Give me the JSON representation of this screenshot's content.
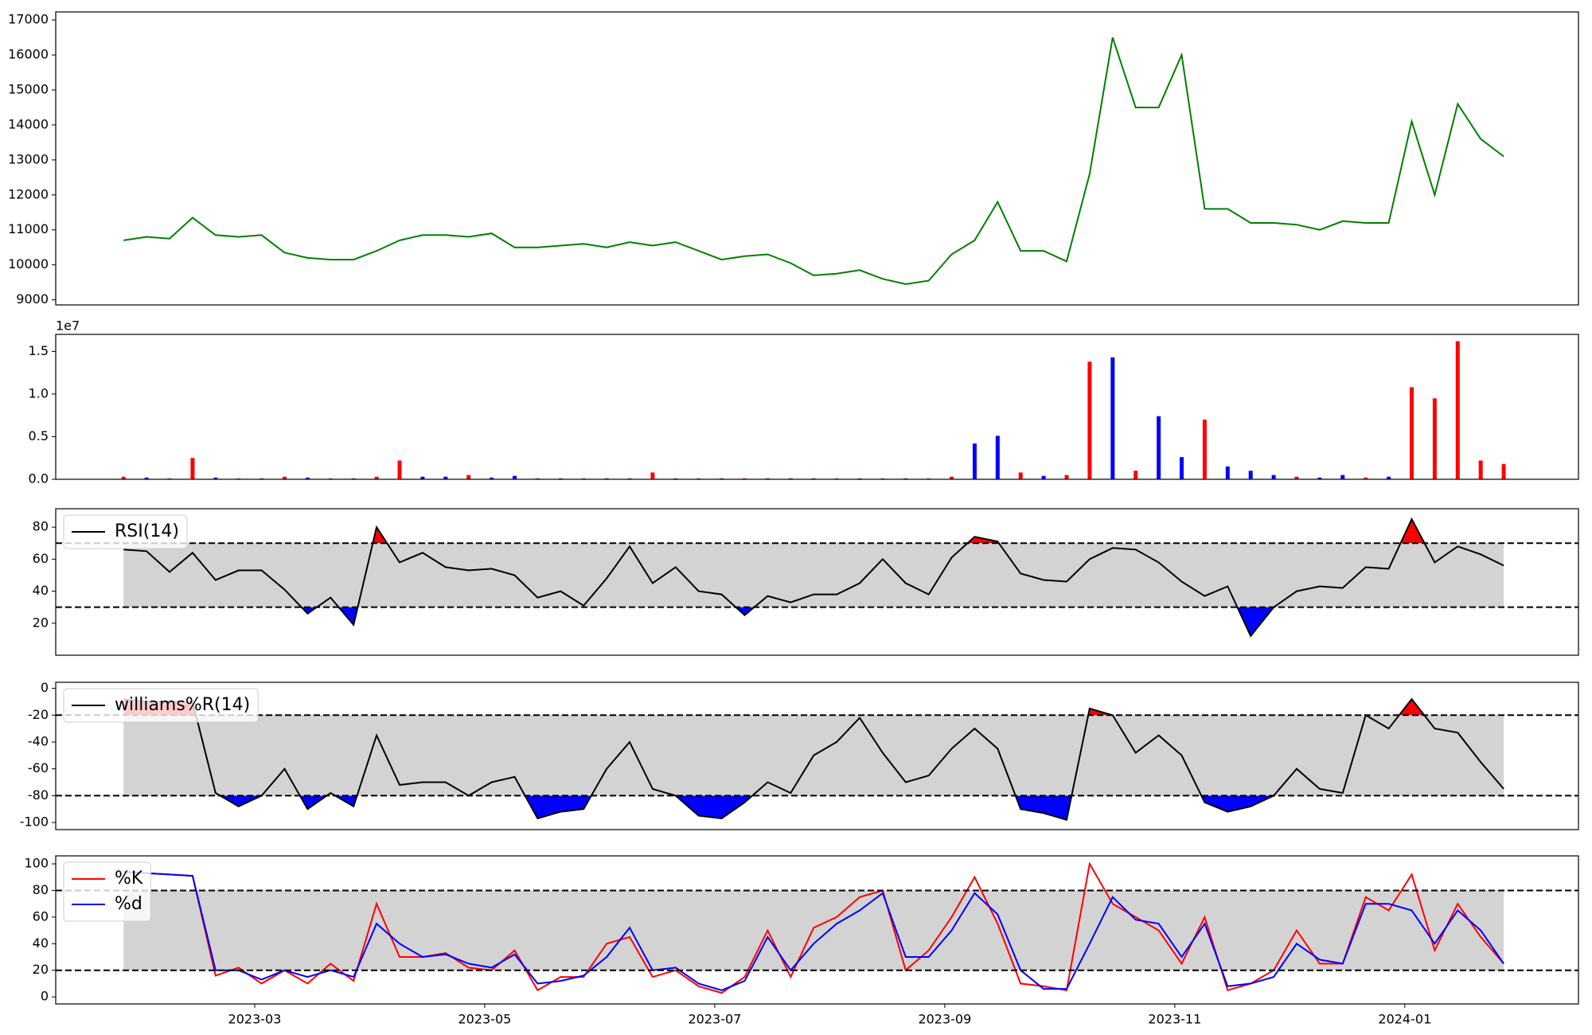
{
  "chart_data": [
    {
      "type": "line",
      "x": [
        1.86,
        2.06,
        2.26,
        2.46,
        2.66,
        2.86,
        3.06,
        3.26,
        3.46,
        3.66,
        3.86,
        4.06,
        4.26,
        4.46,
        4.66,
        4.86,
        5.06,
        5.26,
        5.46,
        5.66,
        5.86,
        6.06,
        6.26,
        6.46,
        6.66,
        6.86,
        7.06,
        7.26,
        7.46,
        7.66,
        7.86,
        8.06,
        8.26,
        8.46,
        8.66,
        8.86,
        9.06,
        9.26,
        9.46,
        9.66,
        9.86,
        10.06,
        10.26,
        10.46,
        10.66,
        10.86,
        11.06,
        11.26,
        11.46,
        11.66,
        11.86,
        12.06,
        12.26,
        12.46,
        12.66,
        12.86,
        13.06,
        13.26,
        13.46,
        13.66,
        13.86
      ],
      "series": [
        {
          "color": "green",
          "values": [
            10700,
            10800,
            10750,
            11350,
            10850,
            10800,
            10850,
            10350,
            10200,
            10150,
            10150,
            10400,
            10700,
            10850,
            10850,
            10800,
            10900,
            10500,
            10500,
            10550,
            10600,
            10500,
            10650,
            10550,
            10650,
            10400,
            10150,
            10250,
            10300,
            10050,
            9700,
            9750,
            9850,
            9600,
            9450,
            9550,
            10300,
            10700,
            11800,
            10400,
            10400,
            10100,
            12600,
            16500,
            14500,
            14500,
            16000,
            11600,
            11600,
            11200,
            11200,
            11150,
            11000,
            11250,
            11200,
            11200,
            14100,
            12000,
            14600,
            13600,
            13100
          ]
        }
      ],
      "ylim": [
        8855,
        17230
      ],
      "yticks": [
        9000,
        10000,
        11000,
        12000,
        13000,
        14000,
        15000,
        16000,
        17000
      ]
    },
    {
      "type": "bar",
      "offset_label": "1e7",
      "values": [
        300000,
        200000,
        100000,
        2500000,
        200000,
        100000,
        100000,
        300000,
        200000,
        100000,
        100000,
        300000,
        2200000,
        300000,
        300000,
        500000,
        200000,
        400000,
        100000,
        100000,
        100000,
        100000,
        100000,
        800000,
        100000,
        100000,
        100000,
        100000,
        100000,
        100000,
        100000,
        100000,
        100000,
        100000,
        100000,
        100000,
        300000,
        4200000,
        5100000,
        800000,
        400000,
        500000,
        13800000,
        14300000,
        1000000,
        7400000,
        2600000,
        7000000,
        1500000,
        1000000,
        500000,
        300000,
        200000,
        500000,
        200000,
        300000,
        10800000,
        9500000,
        16200000,
        2200000,
        1800000
      ],
      "colors": [
        "red",
        "blue",
        "red",
        "red",
        "blue",
        "red",
        "blue",
        "red",
        "blue",
        "red",
        "blue",
        "red",
        "red",
        "blue",
        "blue",
        "red",
        "blue",
        "blue",
        "red",
        "blue",
        "red",
        "blue",
        "blue",
        "red",
        "blue",
        "red",
        "blue",
        "red",
        "blue",
        "blue",
        "blue",
        "red",
        "blue",
        "red",
        "blue",
        "red",
        "red",
        "blue",
        "blue",
        "red",
        "blue",
        "red",
        "red",
        "blue",
        "red",
        "blue",
        "blue",
        "red",
        "blue",
        "blue",
        "blue",
        "red",
        "blue",
        "blue",
        "red",
        "blue",
        "red",
        "red",
        "red",
        "red",
        "red"
      ],
      "ylim": [
        0,
        17000000
      ],
      "yticks": [
        {
          "value": 0,
          "label": "0.0"
        },
        {
          "value": 5000000,
          "label": "0.5"
        },
        {
          "value": 10000000,
          "label": "1.0"
        },
        {
          "value": 15000000,
          "label": "1.5"
        }
      ]
    },
    {
      "type": "oscillator",
      "legend": "upper left",
      "band_color": "lightgray",
      "fill_colors": {
        "above": "red",
        "below": "blue"
      },
      "series": [
        {
          "name": "RSI(14)",
          "color": "black",
          "values": [
            66,
            65,
            52,
            64,
            47,
            53,
            53,
            41,
            26,
            36,
            19,
            80,
            58,
            64,
            55,
            53,
            54,
            50,
            36,
            40,
            31,
            48,
            68,
            45,
            55,
            40,
            38,
            25,
            37,
            33,
            38,
            38,
            45,
            60,
            45,
            38,
            61,
            74,
            71,
            51,
            47,
            46,
            60,
            67,
            66,
            58,
            46,
            37,
            43,
            12,
            30,
            40,
            43,
            42,
            55,
            54,
            85,
            58,
            68,
            63,
            56
          ]
        }
      ],
      "thresholds": [
        70,
        30
      ],
      "ylim": [
        0,
        91.5
      ],
      "yticks": [
        20,
        40,
        60,
        80
      ]
    },
    {
      "type": "oscillator",
      "legend": "upper left",
      "band_color": "lightgray",
      "fill_colors": {
        "above": "red",
        "below": "blue"
      },
      "series": [
        {
          "name": "williams%R(14)",
          "color": "black",
          "values": [
            -8,
            -10,
            -10,
            -10,
            -78,
            -88,
            -80,
            -60,
            -90,
            -78,
            -88,
            -35,
            -72,
            -70,
            -70,
            -80,
            -70,
            -66,
            -97,
            -92,
            -90,
            -60,
            -40,
            -75,
            -80,
            -95,
            -97,
            -85,
            -70,
            -78,
            -50,
            -40,
            -22,
            -48,
            -70,
            -65,
            -45,
            -30,
            -45,
            -90,
            -93,
            -98,
            -15,
            -20,
            -48,
            -35,
            -50,
            -85,
            -92,
            -88,
            -80,
            -60,
            -75,
            -78,
            -20,
            -30,
            -8,
            -30,
            -33,
            -55,
            -75
          ]
        }
      ],
      "thresholds": [
        -20,
        -80
      ],
      "ylim": [
        -105.3,
        4.5
      ],
      "yticks": [
        -100,
        -80,
        -60,
        -40,
        -20,
        0
      ]
    },
    {
      "type": "oscillator",
      "legend": "upper left",
      "band_color": "lightgray",
      "series": [
        {
          "name": "%K",
          "color": "red",
          "values": [
            94,
            93,
            92,
            91,
            16,
            22,
            10,
            20,
            10,
            25,
            12,
            70,
            30,
            30,
            33,
            22,
            20,
            35,
            5,
            15,
            15,
            40,
            45,
            15,
            20,
            8,
            3,
            15,
            50,
            15,
            52,
            60,
            75,
            80,
            20,
            35,
            60,
            90,
            55,
            10,
            8,
            5,
            100,
            70,
            60,
            50,
            25,
            60,
            5,
            10,
            20,
            50,
            25,
            25,
            75,
            65,
            92,
            35,
            70,
            45,
            25
          ]
        },
        {
          "name": "%d",
          "color": "blue",
          "values": [
            94,
            93,
            92,
            91,
            20,
            20,
            13,
            20,
            15,
            20,
            15,
            55,
            40,
            30,
            32,
            25,
            22,
            32,
            10,
            12,
            16,
            30,
            52,
            20,
            22,
            10,
            5,
            12,
            45,
            20,
            40,
            55,
            65,
            78,
            30,
            30,
            50,
            78,
            62,
            20,
            6,
            6,
            40,
            75,
            58,
            55,
            30,
            55,
            8,
            10,
            15,
            40,
            28,
            25,
            70,
            70,
            65,
            40,
            65,
            50,
            25
          ]
        }
      ],
      "thresholds": [
        80,
        20
      ],
      "ylim": [
        -5.3,
        106
      ],
      "yticks": [
        0,
        20,
        40,
        60,
        80,
        100
      ],
      "xlim": [
        1.27,
        14.51
      ],
      "xticks": [
        {
          "value": 3,
          "label": "2023-03"
        },
        {
          "value": 5,
          "label": "2023-05"
        },
        {
          "value": 7,
          "label": "2023-07"
        },
        {
          "value": 9,
          "label": "2023-09"
        },
        {
          "value": 11,
          "label": "2023-11"
        },
        {
          "value": 13,
          "label": "2024-01"
        }
      ]
    }
  ]
}
